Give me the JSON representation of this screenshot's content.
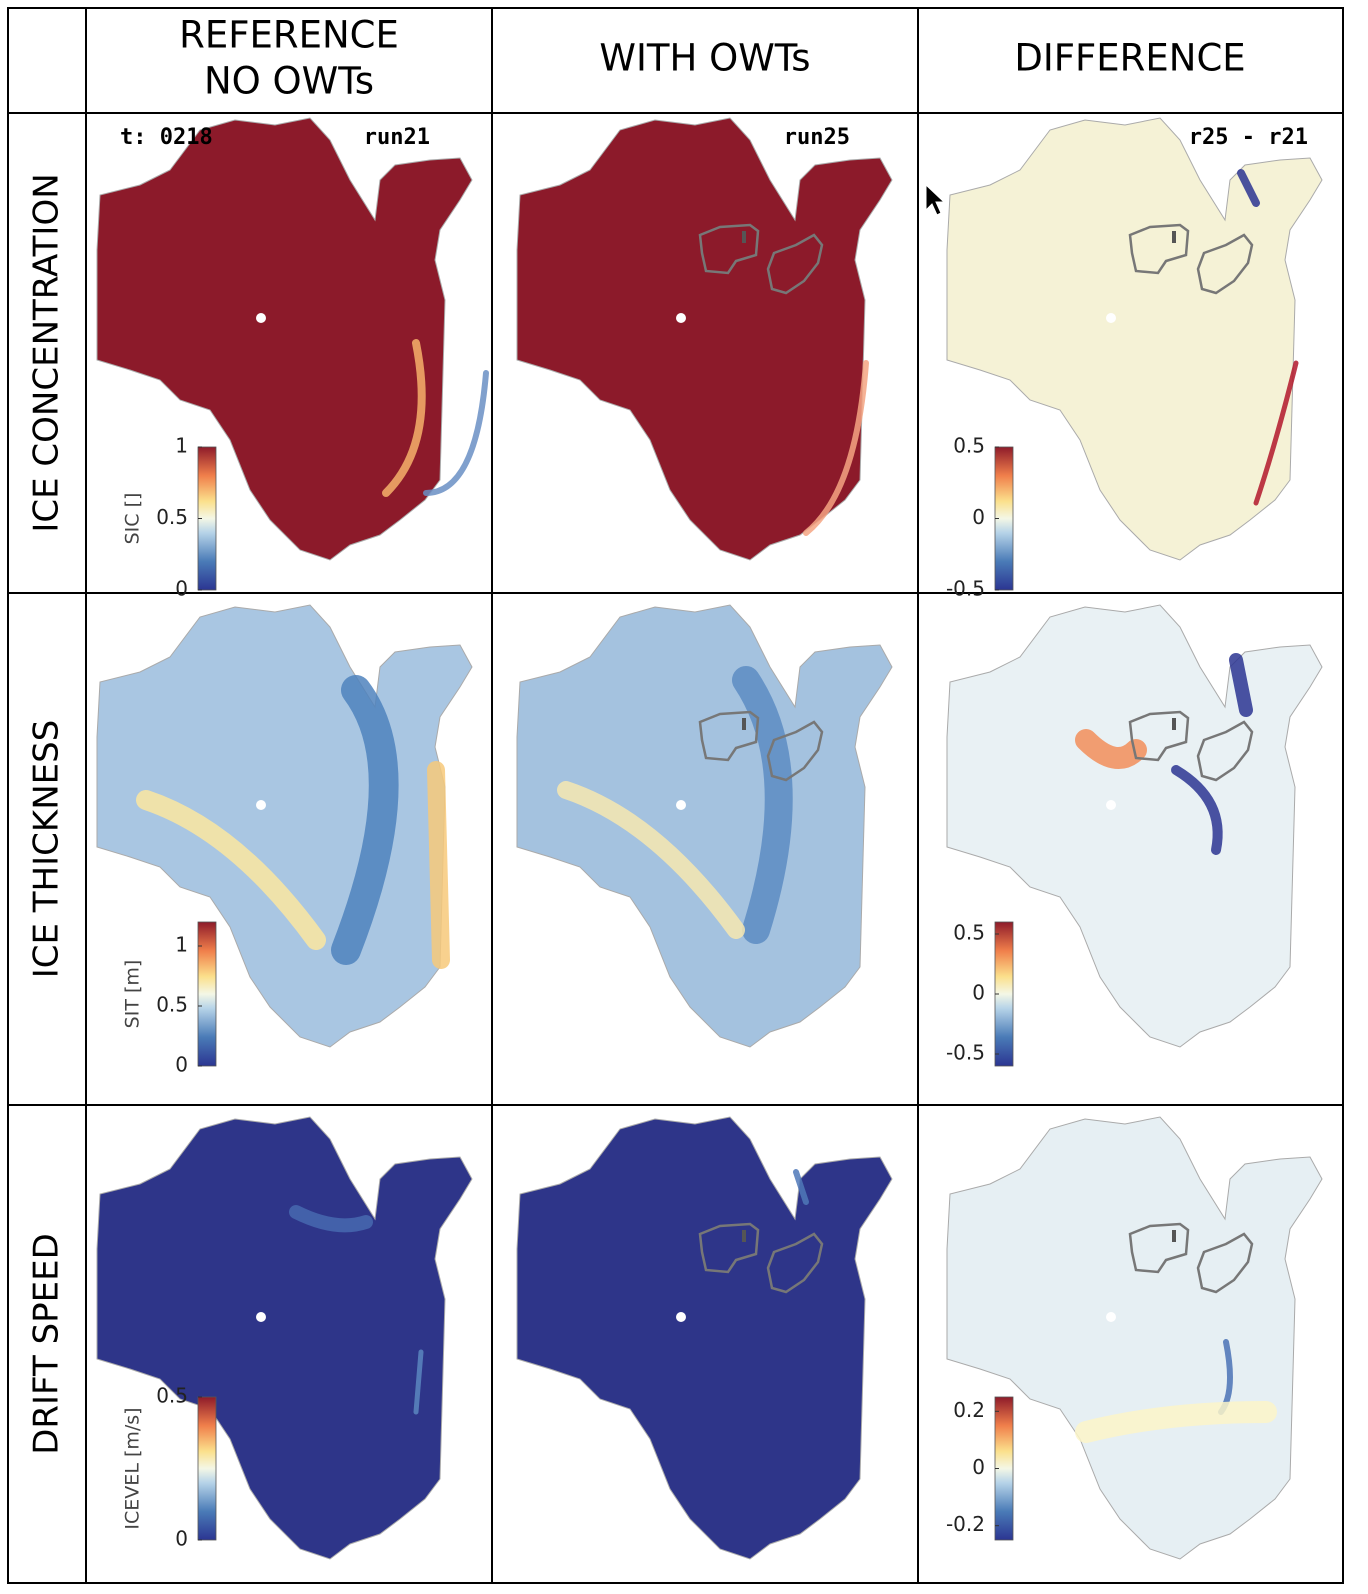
{
  "header": {
    "columns": [
      {
        "lines": [
          "REFERENCE",
          "NO OWTs"
        ]
      },
      {
        "lines": [
          "WITH OWTs"
        ]
      },
      {
        "lines": [
          "DIFFERENCE"
        ]
      }
    ]
  },
  "panel_labels": {
    "time": "t: 0218",
    "run_ref": "run21",
    "run_owt": "run25",
    "diff": "r25 - r21"
  },
  "rows": [
    {
      "label": "ICE CONCENTRATION",
      "colorbar": {
        "label": "SIC []",
        "lim": [
          0,
          1
        ],
        "ticks": [
          0,
          0.5,
          1
        ]
      },
      "diff_colorbar": {
        "lim": [
          -0.5,
          0.5
        ],
        "ticks": [
          -0.5,
          0,
          0.5
        ]
      }
    },
    {
      "label": "ICE THICKNESS",
      "colorbar": {
        "label": "SIT [m]",
        "lim": [
          0,
          1.2
        ],
        "ticks": [
          0,
          0.5,
          1
        ]
      },
      "diff_colorbar": {
        "lim": [
          -0.6,
          0.6
        ],
        "ticks": [
          -0.5,
          0,
          0.5
        ]
      }
    },
    {
      "label": "DRIFT SPEED",
      "colorbar": {
        "label": "ICEVEL [m/s]",
        "lim": [
          0,
          0.5
        ],
        "ticks": [
          0,
          0.5
        ]
      },
      "diff_colorbar": {
        "lim": [
          -0.25,
          0.25
        ],
        "ticks": [
          -0.2,
          0,
          0.2
        ]
      }
    }
  ]
}
